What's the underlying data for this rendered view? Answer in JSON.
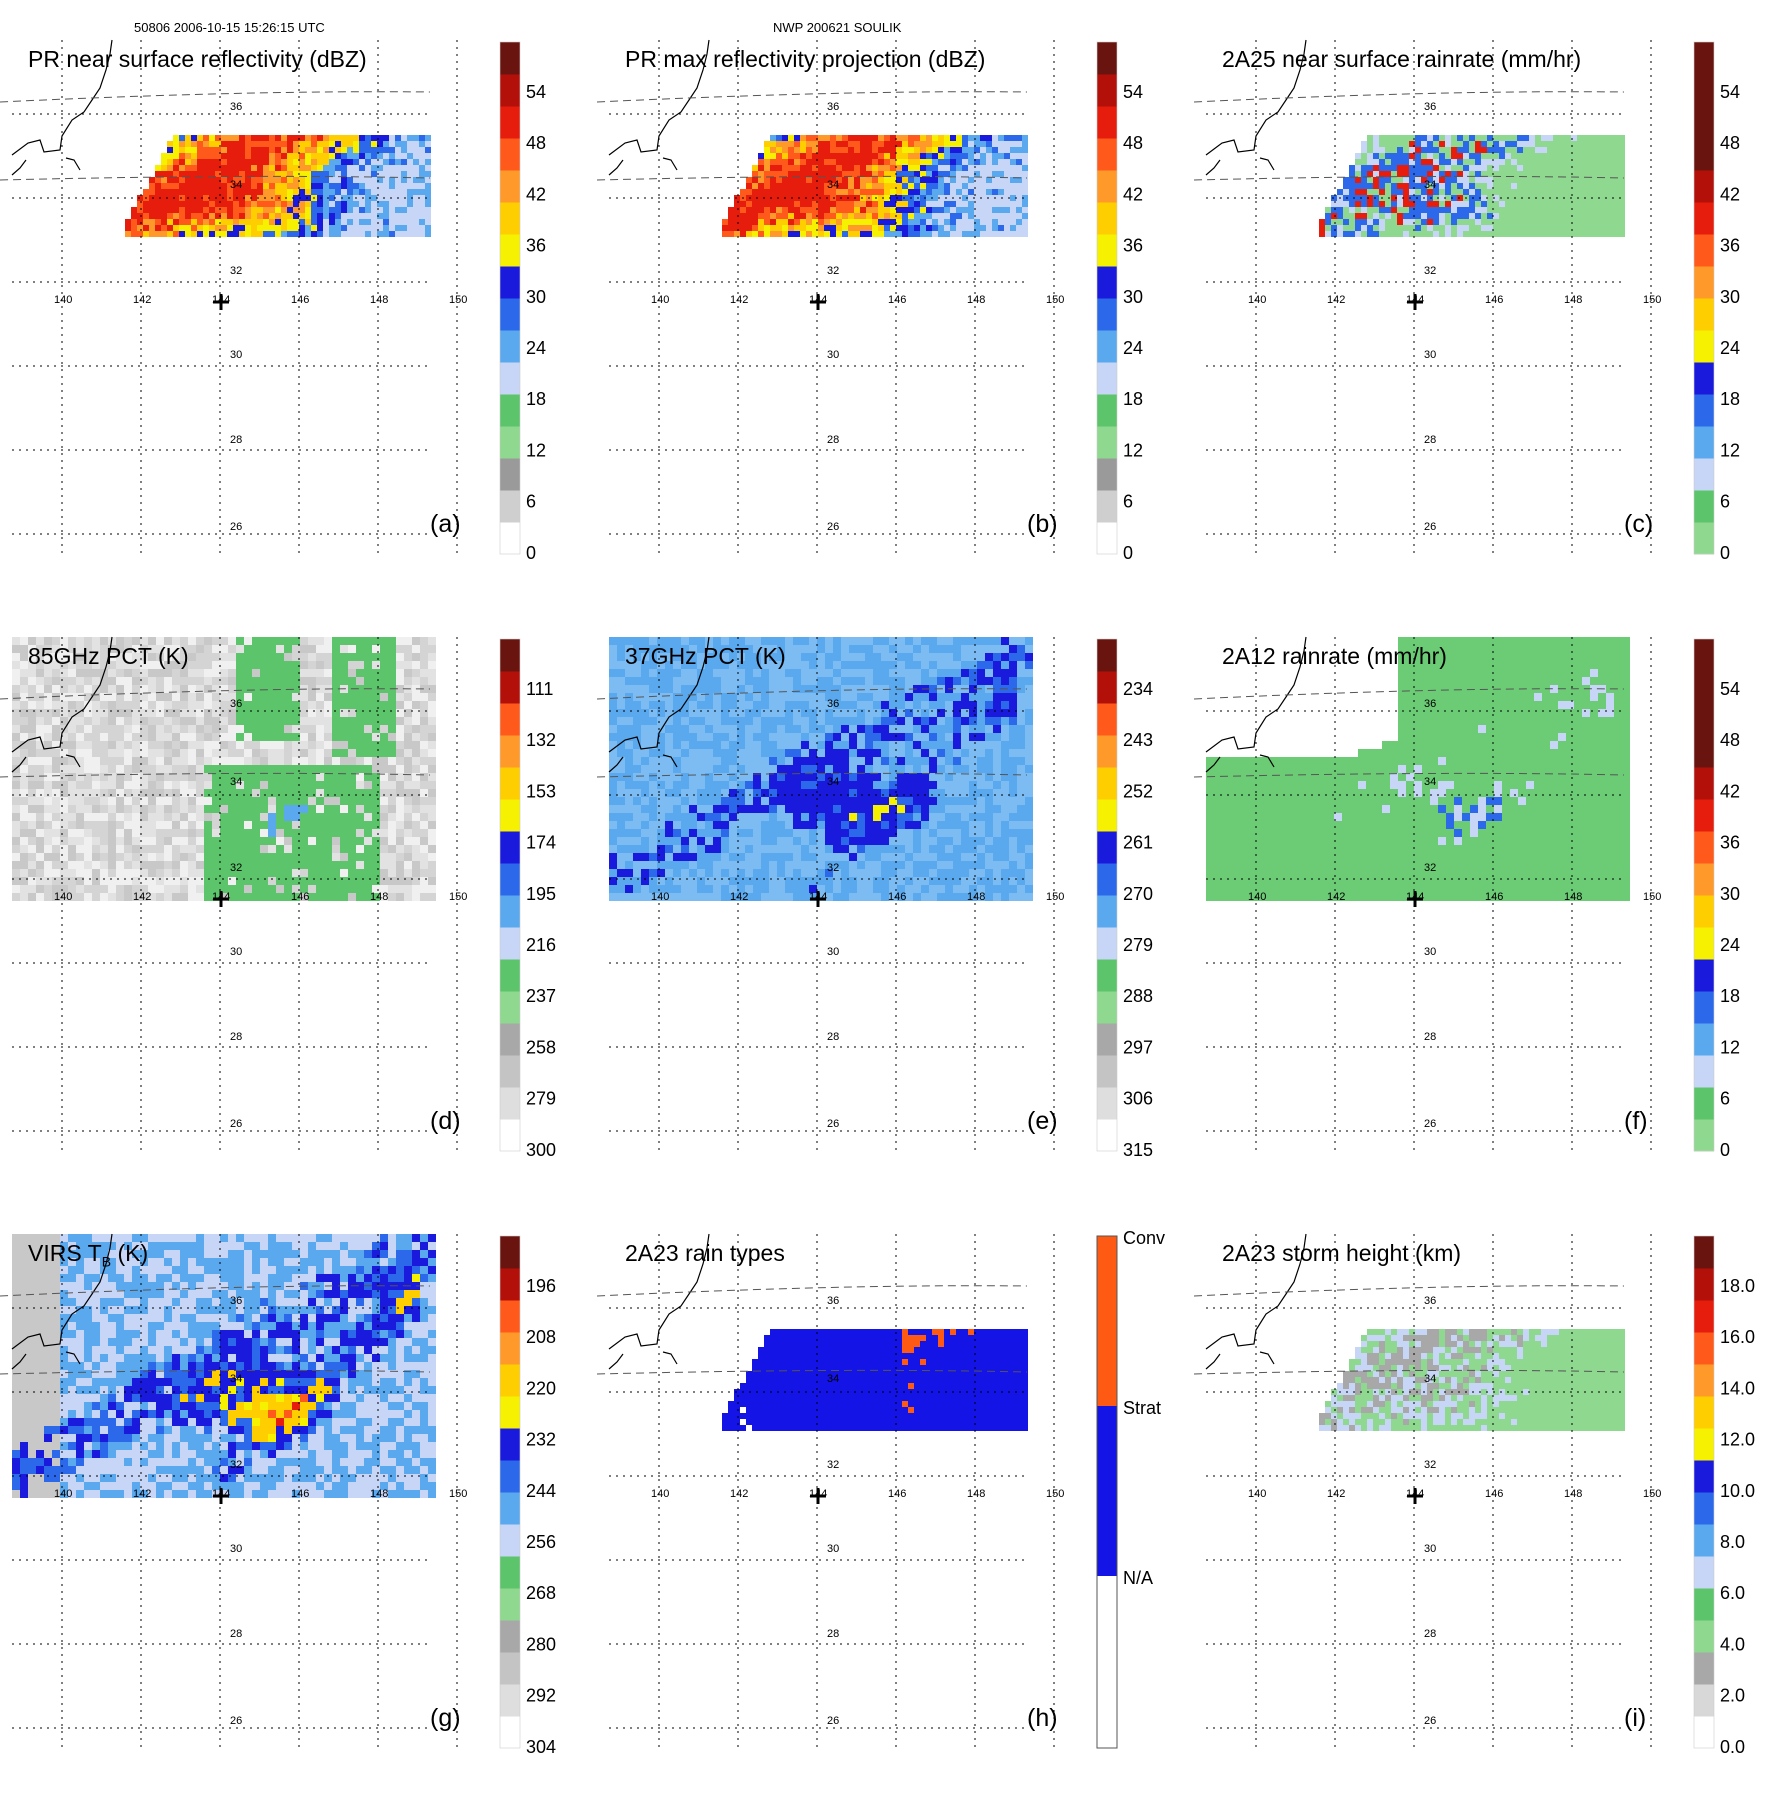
{
  "header": {
    "orbit_time": "50806 2006-10-15 15:26:15 UTC",
    "storm": "NWP 200621 SOULIK"
  },
  "map": {
    "lon_ticks": [
      "140",
      "142",
      "144",
      "146",
      "148",
      "150"
    ],
    "lat_ticks": [
      "36",
      "34",
      "32",
      "30",
      "28",
      "26"
    ]
  },
  "panels": [
    {
      "id": "a",
      "label": "(a)",
      "title": "PR near surface reflectivity (dBZ)",
      "colorbar": [
        "54",
        "48",
        "42",
        "36",
        "30",
        "24",
        "18",
        "12",
        "6",
        "0"
      ],
      "swath": "pr",
      "palette": "refl"
    },
    {
      "id": "b",
      "label": "(b)",
      "title": "PR max reflectivity projection (dBZ)",
      "colorbar": [
        "54",
        "48",
        "42",
        "36",
        "30",
        "24",
        "18",
        "12",
        "6",
        "0"
      ],
      "swath": "pr",
      "palette": "refl"
    },
    {
      "id": "c",
      "label": "(c)",
      "title": "2A25 near surface rainrate (mm/hr)",
      "colorbar": [
        "54",
        "48",
        "42",
        "36",
        "30",
        "24",
        "18",
        "12",
        "6",
        "0"
      ],
      "swath": "pr",
      "palette": "rain"
    },
    {
      "id": "d",
      "label": "(d)",
      "title": "85GHz PCT (K)",
      "colorbar": [
        "111",
        "132",
        "153",
        "174",
        "195",
        "216",
        "237",
        "258",
        "279",
        "300"
      ],
      "swath": "tmi",
      "palette": "pct85"
    },
    {
      "id": "e",
      "label": "(e)",
      "title": "37GHz PCT (K)",
      "colorbar": [
        "234",
        "243",
        "252",
        "261",
        "270",
        "279",
        "288",
        "297",
        "306",
        "315"
      ],
      "swath": "tmi",
      "palette": "pct37"
    },
    {
      "id": "f",
      "label": "(f)",
      "title": "2A12 rainrate (mm/hr)",
      "colorbar": [
        "54",
        "48",
        "42",
        "36",
        "30",
        "24",
        "18",
        "12",
        "6",
        "0"
      ],
      "swath": "tmi",
      "palette": "rain12"
    },
    {
      "id": "g",
      "label": "(g)",
      "title": "VIRS T",
      "title_sub": "B",
      "title_tail": " (K)",
      "colorbar": [
        "196",
        "208",
        "220",
        "232",
        "244",
        "256",
        "268",
        "280",
        "292",
        "304"
      ],
      "swath": "virs",
      "palette": "virs"
    },
    {
      "id": "h",
      "label": "(h)",
      "title": "2A23 rain types",
      "colorbar_cat": [
        "Conv",
        "Strat",
        "N/A"
      ],
      "swath": "pr",
      "palette": "types"
    },
    {
      "id": "i",
      "label": "(i)",
      "title": "2A23 storm height (km)",
      "colorbar": [
        "18.0",
        "16.0",
        "14.0",
        "12.0",
        "10.0",
        "8.0",
        "6.0",
        "4.0",
        "2.0",
        "0.0"
      ],
      "swath": "pr",
      "palette": "height"
    }
  ],
  "colors": {
    "refl": [
      "#ffffff",
      "#cfcfcf",
      "#9a9a9a",
      "#8fd88f",
      "#5cc46a",
      "#c7d6f7",
      "#5aa8ee",
      "#2c68ea",
      "#1a1adc",
      "#f5f100",
      "#ffce00",
      "#ff9a2a",
      "#ff5a1c",
      "#e61c0c",
      "#b4100a",
      "#6a1410"
    ],
    "pct_gray": [
      "#ffffff",
      "#dedede",
      "#c4c4c4",
      "#a8a8a8"
    ],
    "types": {
      "conv": "#ff5a14",
      "strat": "#1414e6",
      "na": "#ffffff"
    }
  }
}
